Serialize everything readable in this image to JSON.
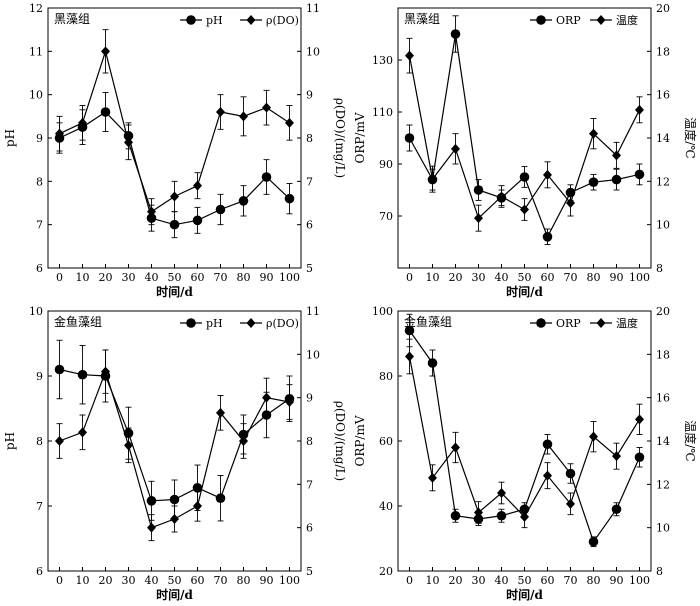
{
  "chart_data": [
    {
      "type": "line",
      "title": "黑藻组",
      "xlabel": "时间/d",
      "ylabel": "pH",
      "ylabel_right": "ρ(DO)/(mg/L)",
      "x": [
        0,
        10,
        20,
        30,
        40,
        50,
        60,
        70,
        80,
        90,
        100
      ],
      "xlim": [
        -5,
        105
      ],
      "ylim": [
        6,
        12
      ],
      "yticks": [
        6,
        7,
        8,
        9,
        10,
        11,
        12
      ],
      "ylim_right": [
        5,
        11
      ],
      "yticks_right": [
        5,
        6,
        7,
        8,
        9,
        10,
        11
      ],
      "legend_position": "top-right",
      "series": [
        {
          "name": "pH",
          "axis": "left",
          "marker": "circle",
          "values": [
            9.0,
            9.25,
            9.6,
            9.05,
            7.15,
            7.0,
            7.1,
            7.35,
            7.55,
            8.1,
            7.6
          ],
          "errors": [
            0.35,
            0.4,
            0.45,
            0.3,
            0.3,
            0.3,
            0.3,
            0.35,
            0.35,
            0.4,
            0.35
          ]
        },
        {
          "name": "ρ(DO)",
          "axis": "right",
          "marker": "diamond",
          "values": [
            8.1,
            8.35,
            10.0,
            7.9,
            6.3,
            6.65,
            6.9,
            8.6,
            8.5,
            8.7,
            8.35
          ],
          "errors": [
            0.4,
            0.4,
            0.5,
            0.4,
            0.3,
            0.35,
            0.3,
            0.4,
            0.45,
            0.4,
            0.4
          ]
        }
      ]
    },
    {
      "type": "line",
      "title": "黑藻组",
      "xlabel": "时间/d",
      "ylabel": "ORP/mV",
      "ylabel_right": "温度/℃",
      "x": [
        0,
        10,
        20,
        30,
        40,
        50,
        60,
        70,
        80,
        90,
        100
      ],
      "xlim": [
        -5,
        105
      ],
      "ylim": [
        50,
        150
      ],
      "yticks": [
        70,
        90,
        110,
        130
      ],
      "ylim_right": [
        8,
        20
      ],
      "yticks_right": [
        8,
        10,
        12,
        14,
        16,
        18,
        20
      ],
      "legend_position": "top-right",
      "series": [
        {
          "name": "ORP",
          "axis": "left",
          "marker": "circle",
          "values": [
            100,
            84,
            140,
            80,
            77,
            85,
            62,
            79,
            83,
            84,
            86
          ],
          "errors": [
            5,
            4,
            7,
            4,
            3,
            4,
            3,
            3,
            3,
            4,
            4
          ]
        },
        {
          "name": "温度",
          "axis": "right",
          "marker": "diamond",
          "values": [
            17.8,
            12.1,
            13.5,
            10.3,
            11.3,
            10.7,
            12.3,
            11.0,
            14.2,
            13.2,
            15.3
          ],
          "errors": [
            0.8,
            0.6,
            0.7,
            0.6,
            0.5,
            0.5,
            0.6,
            0.6,
            0.7,
            0.6,
            0.6
          ]
        }
      ]
    },
    {
      "type": "line",
      "title": "金鱼藻组",
      "xlabel": "时间/d",
      "ylabel": "pH",
      "ylabel_right": "ρ(DO)/(mg/L)",
      "x": [
        0,
        10,
        20,
        30,
        40,
        50,
        60,
        70,
        80,
        90,
        100
      ],
      "xlim": [
        -5,
        105
      ],
      "ylim": [
        6,
        10
      ],
      "yticks": [
        6,
        7,
        8,
        9,
        10
      ],
      "ylim_right": [
        5,
        11
      ],
      "yticks_right": [
        5,
        6,
        7,
        8,
        9,
        10,
        11
      ],
      "legend_position": "top-right",
      "series": [
        {
          "name": "pH",
          "axis": "left",
          "marker": "circle",
          "values": [
            9.1,
            9.02,
            9.0,
            8.12,
            7.08,
            7.1,
            7.28,
            7.12,
            8.1,
            8.4,
            8.65
          ],
          "errors": [
            0.45,
            0.45,
            0.4,
            0.4,
            0.3,
            0.3,
            0.35,
            0.35,
            0.3,
            0.35,
            0.35
          ]
        },
        {
          "name": "ρ(DO)",
          "axis": "right",
          "marker": "diamond",
          "values": [
            8.0,
            8.2,
            9.6,
            7.9,
            6.0,
            6.2,
            6.5,
            8.65,
            8.0,
            9.0,
            8.9
          ],
          "errors": [
            0.4,
            0.4,
            0.5,
            0.4,
            0.3,
            0.3,
            0.35,
            0.4,
            0.4,
            0.45,
            0.4
          ]
        }
      ]
    },
    {
      "type": "line",
      "title": "金鱼藻组",
      "xlabel": "时间/d",
      "ylabel": "ORP/mV",
      "ylabel_right": "温度/℃",
      "x": [
        0,
        10,
        20,
        30,
        40,
        50,
        60,
        70,
        80,
        90,
        100
      ],
      "xlim": [
        -5,
        105
      ],
      "ylim": [
        20,
        100
      ],
      "yticks": [
        20,
        40,
        60,
        80,
        100
      ],
      "ylim_right": [
        8,
        20
      ],
      "yticks_right": [
        8,
        10,
        12,
        14,
        16,
        18,
        20
      ],
      "legend_position": "top-right",
      "series": [
        {
          "name": "ORP",
          "axis": "left",
          "marker": "circle",
          "values": [
            94,
            84,
            37,
            36,
            37,
            39,
            59,
            50,
            29,
            39,
            55
          ],
          "errors": [
            5,
            4,
            2,
            2,
            2,
            2,
            3,
            3,
            1.5,
            2,
            3
          ]
        },
        {
          "name": "温度",
          "axis": "right",
          "marker": "diamond",
          "values": [
            17.9,
            12.3,
            13.7,
            10.7,
            11.6,
            10.5,
            12.4,
            11.1,
            14.2,
            13.3,
            15.0
          ],
          "errors": [
            0.8,
            0.6,
            0.7,
            0.5,
            0.5,
            0.5,
            0.6,
            0.5,
            0.7,
            0.6,
            0.7
          ]
        }
      ]
    }
  ]
}
